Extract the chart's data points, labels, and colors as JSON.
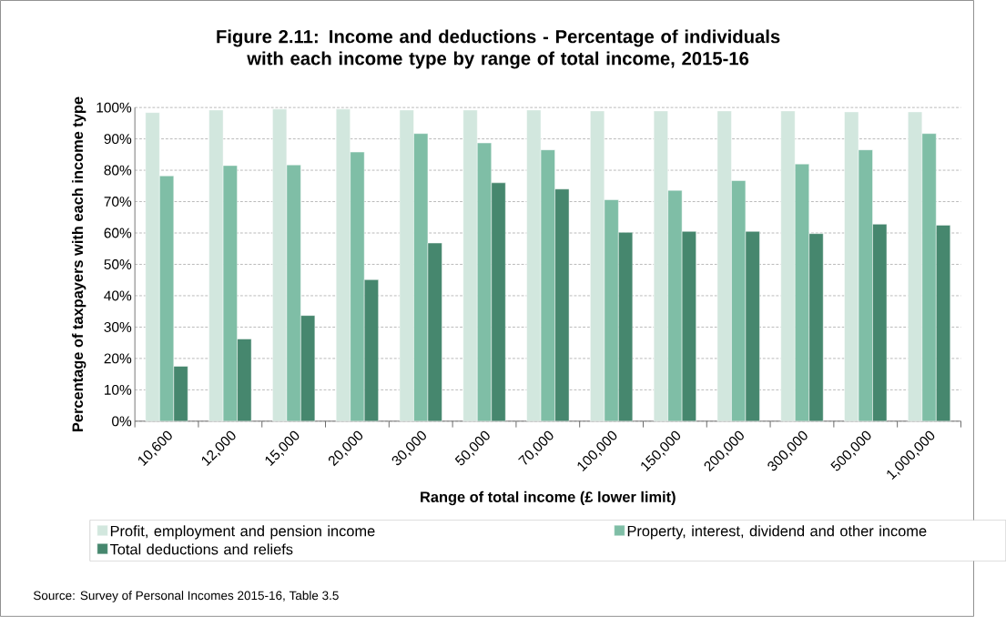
{
  "chart_data": {
    "type": "bar",
    "title": "Figure 2.11: Income and deductions - Percentage of individuals with each income type by range of total income, 2015-16",
    "xlabel": "Range of total income  (£ lower limit)",
    "ylabel": "Percentage of taxpayers with each income type",
    "categories": [
      "10,600",
      "12,000",
      "15,000",
      "20,000",
      "30,000",
      "50,000",
      "70,000",
      "100,000",
      "150,000",
      "200,000",
      "300,000",
      "500,000",
      "1,000,000"
    ],
    "series": [
      {
        "name": "Profit, employment and pension income",
        "color": "#d2e7de",
        "values": [
          98.4,
          99.2,
          99.5,
          99.5,
          99.2,
          99.2,
          99.2,
          98.9,
          98.9,
          98.9,
          98.9,
          98.6,
          98.6
        ]
      },
      {
        "name": "Property, interest, dividend and other income",
        "color": "#7fbea6",
        "values": [
          78.2,
          81.5,
          81.7,
          85.8,
          91.7,
          88.7,
          86.5,
          70.6,
          73.6,
          76.7,
          82.0,
          86.5,
          91.7
        ]
      },
      {
        "name": "Total deductions and reliefs",
        "color": "#46876e",
        "values": [
          17.5,
          26.2,
          33.7,
          45.1,
          56.8,
          76.0,
          74.0,
          60.2,
          60.5,
          60.5,
          59.8,
          62.8,
          62.5
        ]
      }
    ],
    "ylim": [
      0,
      100
    ],
    "yticks": [
      {
        "value": 0,
        "label": "0%"
      },
      {
        "value": 10,
        "label": "10%"
      },
      {
        "value": 20,
        "label": "20%"
      },
      {
        "value": 30,
        "label": "30%"
      },
      {
        "value": 40,
        "label": "40%"
      },
      {
        "value": 50,
        "label": "50%"
      },
      {
        "value": 60,
        "label": "60%"
      },
      {
        "value": 70,
        "label": "70%"
      },
      {
        "value": 80,
        "label": "80%"
      },
      {
        "value": 90,
        "label": "90%"
      },
      {
        "value": 100,
        "label": "100%"
      }
    ],
    "grid": "y",
    "legend": "bottom",
    "annotations": [
      "Source: Survey of Personal Incomes 2015-16, Table 3.5"
    ]
  }
}
